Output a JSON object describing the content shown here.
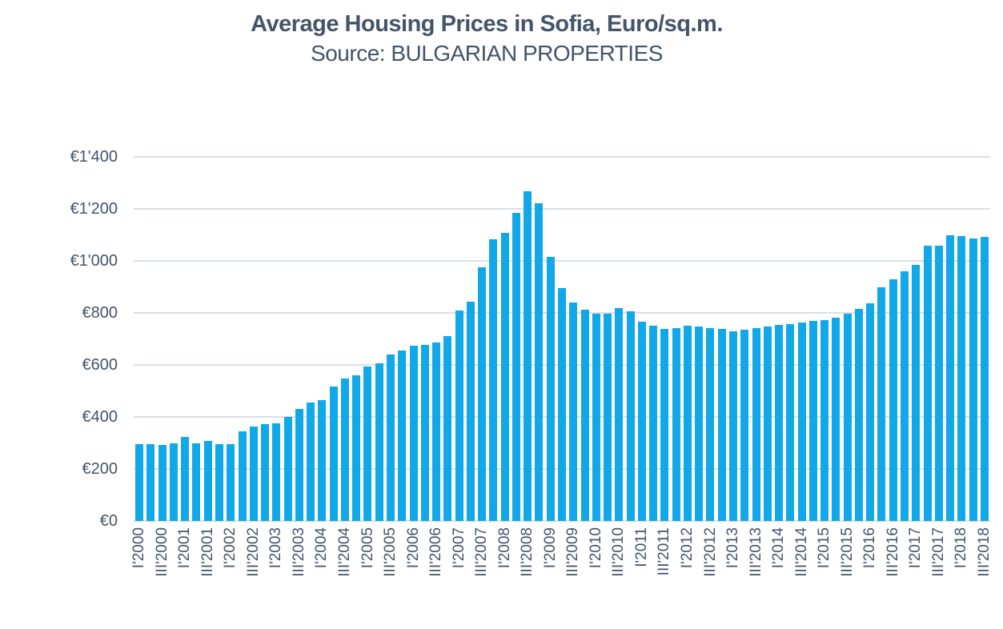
{
  "title": "Average Housing Prices in Sofia, Euro/sq.m.",
  "subtitle": "Source: BULGARIAN PROPERTIES",
  "colors": {
    "bar": "#10A8E8",
    "text": "#44546A",
    "grid": "#DAE0E7",
    "background": "#FFFFFF"
  },
  "chart_data": {
    "type": "bar",
    "title": "Average Housing Prices in Sofia, Euro/sq.m.",
    "subtitle": "Source: BULGARIAN PROPERTIES",
    "xlabel": "",
    "ylabel": "",
    "unit": "EUR per sq.m.",
    "ylim": [
      0,
      1400
    ],
    "grid": true,
    "legend_position": "none",
    "y_ticks": [
      {
        "label": "€0",
        "value": 0
      },
      {
        "label": "€200",
        "value": 200
      },
      {
        "label": "€400",
        "value": 400
      },
      {
        "label": "€600",
        "value": 600
      },
      {
        "label": "€800",
        "value": 800
      },
      {
        "label": "€1'000",
        "value": 1000
      },
      {
        "label": "€1'200",
        "value": 1200
      },
      {
        "label": "€1'400",
        "value": 1400
      }
    ],
    "x_tick_every": 2,
    "x_tick_labels": [
      "I'2000",
      "III'2000",
      "I'2001",
      "III'2001",
      "I'2002",
      "III'2002",
      "I'2003",
      "III'2003",
      "I'2004",
      "III'2004",
      "I'2005",
      "III'2005",
      "I'2006",
      "III'2006",
      "I'2007",
      "III'2007",
      "I'2008",
      "III'2008",
      "I'2009",
      "III'2009",
      "I'2010",
      "III'2010",
      "I'2011",
      "III'2011",
      "I'2012",
      "III'2012",
      "I'2013",
      "III'2013",
      "I'2014",
      "III'2014",
      "I'2015",
      "III'2015",
      "I'2016",
      "III'2016",
      "I'2017",
      "III'2017",
      "I'2018",
      "III'2018"
    ],
    "categories": [
      "I'2000",
      "II'2000",
      "III'2000",
      "IV'2000",
      "I'2001",
      "II'2001",
      "III'2001",
      "IV'2001",
      "I'2002",
      "II'2002",
      "III'2002",
      "IV'2002",
      "I'2003",
      "II'2003",
      "III'2003",
      "IV'2003",
      "I'2004",
      "II'2004",
      "III'2004",
      "IV'2004",
      "I'2005",
      "II'2005",
      "III'2005",
      "IV'2005",
      "I'2006",
      "II'2006",
      "III'2006",
      "IV'2006",
      "I'2007",
      "II'2007",
      "III'2007",
      "IV'2007",
      "I'2008",
      "II'2008",
      "III'2008",
      "IV'2008",
      "I'2009",
      "II'2009",
      "III'2009",
      "IV'2009",
      "I'2010",
      "II'2010",
      "III'2010",
      "IV'2010",
      "I'2011",
      "II'2011",
      "III'2011",
      "IV'2011",
      "I'2012",
      "II'2012",
      "III'2012",
      "IV'2012",
      "I'2013",
      "II'2013",
      "III'2013",
      "IV'2013",
      "I'2014",
      "II'2014",
      "III'2014",
      "IV'2014",
      "I'2015",
      "II'2015",
      "III'2015",
      "IV'2015",
      "I'2016",
      "II'2016",
      "III'2016",
      "IV'2016",
      "I'2017",
      "II'2017",
      "III'2017",
      "IV'2017",
      "I'2018",
      "II'2018",
      "III'2018"
    ],
    "values": [
      295,
      295,
      291,
      298,
      322,
      298,
      308,
      295,
      297,
      344,
      364,
      371,
      375,
      401,
      432,
      457,
      465,
      518,
      547,
      560,
      593,
      607,
      639,
      656,
      674,
      676,
      685,
      711,
      810,
      843,
      974,
      1083,
      1108,
      1185,
      1268,
      1221,
      1015,
      895,
      841,
      811,
      797,
      797,
      818,
      805,
      766,
      750,
      739,
      743,
      752,
      748,
      742,
      738,
      730,
      735,
      743,
      748,
      753,
      758,
      764,
      769,
      774,
      783,
      797,
      816,
      837,
      899,
      930,
      961,
      986,
      1059,
      1059,
      1098,
      1096,
      1086,
      1092
    ]
  }
}
